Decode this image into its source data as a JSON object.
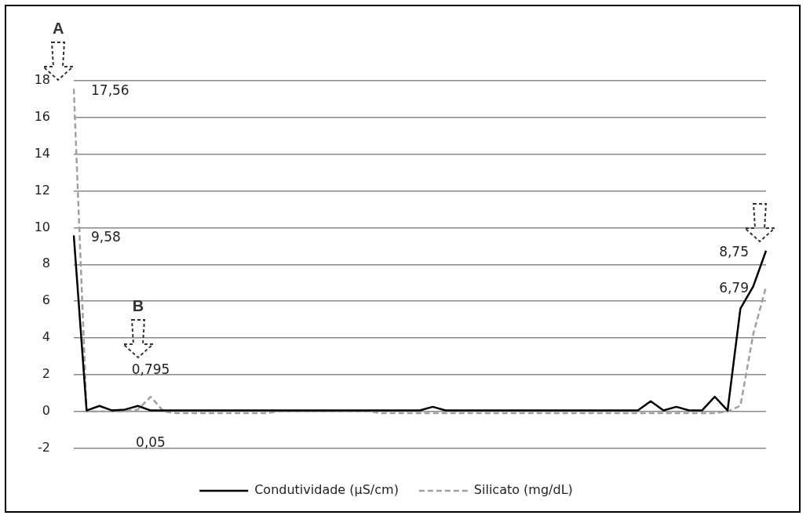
{
  "chart_data": {
    "type": "line",
    "categories": [
      null,
      null,
      null,
      null,
      null,
      null,
      null,
      null,
      null,
      null,
      null,
      null,
      null,
      null,
      null,
      null,
      null,
      null,
      null,
      null,
      null,
      null,
      null,
      null,
      null,
      null,
      null,
      null,
      null,
      null,
      null,
      null,
      null,
      null,
      null,
      null,
      null,
      null,
      null,
      null,
      null,
      null,
      null,
      null,
      null,
      null,
      null,
      null,
      null,
      null,
      null,
      null,
      null,
      null,
      null
    ],
    "series": [
      {
        "name": "Condutividade (µS/cm)",
        "color": "#000000",
        "line_style": "solid",
        "values": [
          9.58,
          0.05,
          0.3,
          0.05,
          0.1,
          0.3,
          0.05,
          0.05,
          0.05,
          0.05,
          0.05,
          0.05,
          0.05,
          0.05,
          0.05,
          0.05,
          0.05,
          0.05,
          0.05,
          0.05,
          0.05,
          0.05,
          0.05,
          0.05,
          0.05,
          0.05,
          0.05,
          0.05,
          0.25,
          0.05,
          0.05,
          0.05,
          0.05,
          0.05,
          0.05,
          0.05,
          0.05,
          0.05,
          0.05,
          0.05,
          0.05,
          0.05,
          0.05,
          0.05,
          0.05,
          0.55,
          0.05,
          0.25,
          0.05,
          0.05,
          0.8,
          0.05,
          5.6,
          6.8,
          8.75
        ],
        "value_labels": [
          "9,58",
          null,
          null,
          null,
          null,
          null,
          "0,05",
          null,
          null,
          null,
          null,
          null,
          null,
          null,
          null,
          null,
          null,
          null,
          null,
          null,
          null,
          null,
          null,
          null,
          null,
          null,
          null,
          null,
          null,
          null,
          null,
          null,
          null,
          null,
          null,
          null,
          null,
          null,
          null,
          null,
          null,
          null,
          null,
          null,
          null,
          null,
          null,
          null,
          null,
          null,
          null,
          null,
          null,
          null,
          "8,75"
        ]
      },
      {
        "name": "Silicato (mg/dL)",
        "color": "#a0a0a0",
        "line_style": "dashed",
        "values": [
          17.56,
          0,
          0,
          0,
          0,
          0.1,
          0.795,
          0,
          -0.1,
          -0.1,
          -0.1,
          -0.1,
          -0.1,
          -0.1,
          -0.1,
          -0.1,
          0,
          0,
          0,
          0,
          0,
          0,
          0,
          0,
          -0.1,
          -0.1,
          -0.1,
          -0.1,
          -0.1,
          -0.1,
          -0.1,
          -0.1,
          -0.1,
          -0.1,
          -0.1,
          -0.1,
          -0.1,
          -0.1,
          -0.1,
          -0.1,
          -0.1,
          -0.1,
          -0.1,
          -0.1,
          -0.1,
          -0.1,
          -0.1,
          -0.1,
          -0.1,
          -0.1,
          -0.1,
          0,
          0.3,
          4.2,
          6.79
        ],
        "value_labels": [
          "17,56",
          null,
          null,
          null,
          null,
          null,
          "0,795",
          null,
          null,
          null,
          null,
          null,
          null,
          null,
          null,
          null,
          null,
          null,
          null,
          null,
          null,
          null,
          null,
          null,
          null,
          null,
          null,
          null,
          null,
          null,
          null,
          null,
          null,
          null,
          null,
          null,
          null,
          null,
          null,
          null,
          null,
          null,
          null,
          null,
          null,
          null,
          null,
          null,
          null,
          null,
          null,
          null,
          null,
          null,
          "6,79"
        ]
      }
    ],
    "ylim": [
      -2,
      18
    ],
    "yticks": [
      -2,
      0,
      2,
      4,
      6,
      8,
      10,
      12,
      14,
      16,
      18
    ],
    "grid": "y",
    "legend": "bottom",
    "marker": "none",
    "annotations": [
      "A",
      "B"
    ]
  }
}
